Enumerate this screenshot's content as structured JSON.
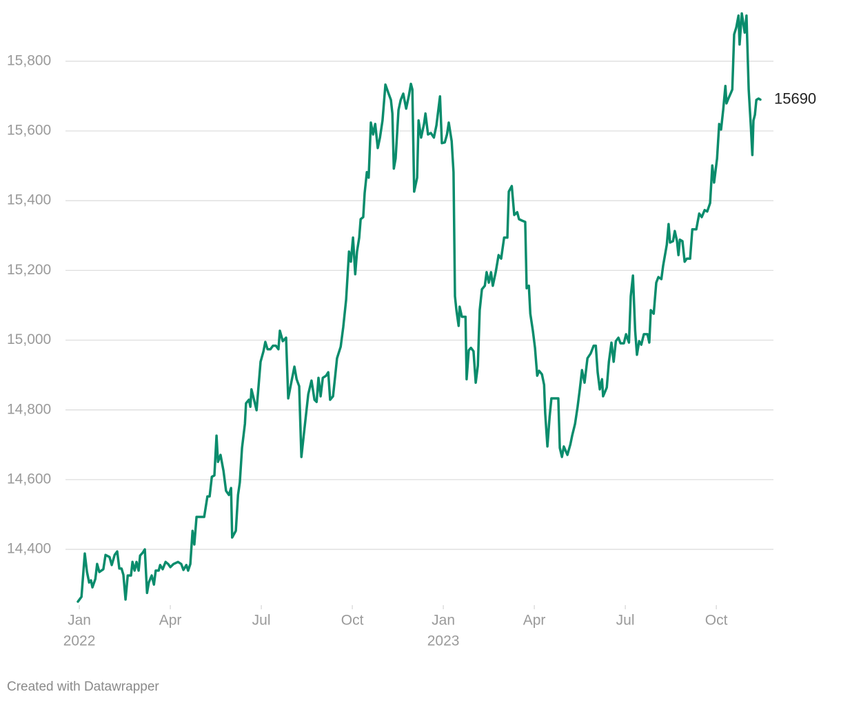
{
  "chart_data": {
    "type": "line",
    "color": "#0a8c6c",
    "grid": true,
    "credit": "Created with Datawrapper",
    "xlim": [
      2021.962,
      2023.907
    ],
    "ylim": [
      14240,
      15940
    ],
    "xticks": [
      {
        "value": 2022,
        "label": "Jan",
        "year": "2022"
      },
      {
        "value": 2022.25,
        "label": "Apr"
      },
      {
        "value": 2022.5,
        "label": "Jul"
      },
      {
        "value": 2022.75,
        "label": "Oct"
      },
      {
        "value": 2023,
        "label": "Jan",
        "year": "2023"
      },
      {
        "value": 2023.25,
        "label": "Apr"
      },
      {
        "value": 2023.5,
        "label": "Jul"
      },
      {
        "value": 2023.75,
        "label": "Oct"
      }
    ],
    "yticks": [
      {
        "value": 14400,
        "label": "14,400"
      },
      {
        "value": 14600,
        "label": "14,600"
      },
      {
        "value": 14800,
        "label": "14,800"
      },
      {
        "value": 15000,
        "label": "15,000"
      },
      {
        "value": 15200,
        "label": "15,200"
      },
      {
        "value": 15400,
        "label": "15,400"
      },
      {
        "value": 15600,
        "label": "15,600"
      },
      {
        "value": 15800,
        "label": "15,800"
      }
    ],
    "x": [
      2021.996,
      2022.006,
      2022.015,
      2022.021,
      2022.027,
      2022.032,
      2022.036,
      2022.044,
      2022.049,
      2022.055,
      2022.066,
      2022.072,
      2022.083,
      2022.089,
      2022.097,
      2022.104,
      2022.11,
      2022.116,
      2022.121,
      2022.127,
      2022.133,
      2022.142,
      2022.146,
      2022.152,
      2022.157,
      2022.163,
      2022.167,
      2022.174,
      2022.18,
      2022.186,
      2022.191,
      2022.199,
      2022.205,
      2022.21,
      2022.218,
      2022.222,
      2022.229,
      2022.237,
      2022.244,
      2022.25,
      2022.259,
      2022.271,
      2022.28,
      2022.286,
      2022.294,
      2022.299,
      2022.305,
      2022.311,
      2022.316,
      2022.322,
      2022.331,
      2022.343,
      2022.352,
      2022.358,
      2022.364,
      2022.371,
      2022.377,
      2022.381,
      2022.388,
      2022.396,
      2022.403,
      2022.411,
      2022.417,
      2022.42,
      2022.43,
      2022.436,
      2022.441,
      2022.447,
      2022.455,
      2022.458,
      2022.466,
      2022.47,
      2022.473,
      2022.479,
      2022.487,
      2022.494,
      2022.498,
      2022.506,
      2022.511,
      2022.517,
      2022.525,
      2022.532,
      2022.54,
      2022.547,
      2022.551,
      2022.559,
      2022.568,
      2022.574,
      2022.583,
      2022.591,
      2022.597,
      2022.604,
      2022.61,
      2022.621,
      2022.629,
      2022.638,
      2022.646,
      2022.652,
      2022.657,
      2022.663,
      2022.669,
      2022.678,
      2022.684,
      2022.689,
      2022.697,
      2022.703,
      2022.708,
      2022.718,
      2022.725,
      2022.733,
      2022.741,
      2022.746,
      2022.752,
      2022.758,
      2022.763,
      2022.769,
      2022.773,
      2022.78,
      2022.784,
      2022.79,
      2022.795,
      2022.801,
      2022.807,
      2022.813,
      2022.82,
      2022.826,
      2022.833,
      2022.841,
      2022.849,
      2022.856,
      2022.86,
      2022.864,
      2022.869,
      2022.877,
      2022.883,
      2022.89,
      2022.898,
      2022.905,
      2022.911,
      2022.915,
      2022.92,
      2022.928,
      2022.932,
      2022.939,
      2022.947,
      2022.951,
      2022.958,
      2022.966,
      2022.974,
      2022.981,
      2022.991,
      2022.996,
      2023.004,
      2023.01,
      2023.015,
      2023.023,
      2023.028,
      2023.032,
      2023.036,
      2023.042,
      2023.045,
      2023.051,
      2023.061,
      2023.064,
      2023.07,
      2023.076,
      2023.083,
      2023.089,
      2023.095,
      2023.1,
      2023.106,
      2023.114,
      2023.119,
      2023.125,
      2023.131,
      2023.136,
      2023.144,
      2023.152,
      2023.159,
      2023.167,
      2023.176,
      2023.18,
      2023.188,
      2023.195,
      2023.203,
      2023.208,
      2023.216,
      2023.225,
      2023.229,
      2023.235,
      2023.239,
      2023.246,
      2023.252,
      2023.258,
      2023.263,
      2023.271,
      2023.277,
      2023.28,
      2023.286,
      2023.292,
      2023.297,
      2023.309,
      2023.316,
      2023.32,
      2023.326,
      2023.331,
      2023.341,
      2023.349,
      2023.354,
      2023.362,
      2023.369,
      2023.375,
      2023.381,
      2023.388,
      2023.396,
      2023.405,
      2023.413,
      2023.419,
      2023.424,
      2023.43,
      2023.436,
      2023.439,
      2023.449,
      2023.455,
      2023.462,
      2023.468,
      2023.474,
      2023.481,
      2023.487,
      2023.496,
      2023.502,
      2023.51,
      2023.515,
      2023.521,
      2023.527,
      2023.532,
      2023.538,
      2023.544,
      2023.551,
      2023.561,
      2023.566,
      2023.57,
      2023.578,
      2023.585,
      2023.591,
      2023.599,
      2023.604,
      2023.614,
      2023.619,
      2023.623,
      2023.631,
      2023.636,
      2023.642,
      2023.646,
      2023.65,
      2023.657,
      2023.663,
      2023.669,
      2023.678,
      2023.684,
      2023.695,
      2023.703,
      2023.71,
      2023.718,
      2023.725,
      2023.733,
      2023.739,
      2023.744,
      2023.752,
      2023.758,
      2023.763,
      2023.769,
      2023.775,
      2023.778,
      2023.784,
      2023.79,
      2023.794,
      2023.799,
      2023.805,
      2023.811,
      2023.814,
      2023.82,
      2023.828,
      2023.833,
      2023.839,
      2023.845,
      2023.849,
      2023.852,
      2023.856,
      2023.86,
      2023.866,
      2023.871
    ],
    "values": [
      14250,
      14264,
      14388,
      14335,
      14305,
      14311,
      14291,
      14315,
      14358,
      14335,
      14343,
      14384,
      14378,
      14355,
      14384,
      14394,
      14345,
      14345,
      14327,
      14256,
      14325,
      14325,
      14364,
      14339,
      14364,
      14339,
      14382,
      14390,
      14400,
      14275,
      14305,
      14325,
      14299,
      14339,
      14339,
      14355,
      14343,
      14364,
      14358,
      14349,
      14358,
      14364,
      14358,
      14341,
      14355,
      14339,
      14358,
      14453,
      14414,
      14493,
      14493,
      14493,
      14552,
      14552,
      14608,
      14612,
      14726,
      14651,
      14671,
      14625,
      14568,
      14556,
      14576,
      14434,
      14453,
      14556,
      14592,
      14691,
      14760,
      14819,
      14829,
      14809,
      14859,
      14833,
      14799,
      14888,
      14938,
      14968,
      14995,
      14974,
      14974,
      14984,
      14984,
      14974,
      15027,
      14997,
      15007,
      14833,
      14882,
      14924,
      14888,
      14868,
      14665,
      14770,
      14845,
      14884,
      14829,
      14823,
      14892,
      14839,
      14892,
      14898,
      14908,
      14829,
      14839,
      14898,
      14948,
      14981,
      15037,
      15116,
      15254,
      15225,
      15294,
      15189,
      15254,
      15294,
      15347,
      15353,
      15422,
      15482,
      15466,
      15624,
      15590,
      15620,
      15551,
      15581,
      15630,
      15733,
      15709,
      15689,
      15650,
      15492,
      15521,
      15660,
      15689,
      15707,
      15664,
      15699,
      15735,
      15719,
      15426,
      15466,
      15630,
      15581,
      15620,
      15650,
      15590,
      15594,
      15581,
      15616,
      15699,
      15565,
      15567,
      15590,
      15624,
      15571,
      15482,
      15126,
      15086,
      15041,
      15096,
      15067,
      15067,
      14888,
      14971,
      14978,
      14968,
      14878,
      14927,
      15086,
      15146,
      15156,
      15195,
      15165,
      15195,
      15156,
      15195,
      15244,
      15234,
      15294,
      15294,
      15426,
      15442,
      15359,
      15367,
      15347,
      15343,
      15339,
      15149,
      15156,
      15076,
      15027,
      14978,
      14898,
      14912,
      14902,
      14872,
      14790,
      14695,
      14780,
      14833,
      14833,
      14833,
      14691,
      14665,
      14695,
      14671,
      14701,
      14726,
      14760,
      14809,
      14859,
      14914,
      14878,
      14948,
      14962,
      14984,
      14984,
      14908,
      14859,
      14888,
      14839,
      14864,
      14938,
      14993,
      14938,
      14997,
      15007,
      14991,
      14991,
      15017,
      14993,
      15126,
      15185,
      15027,
      14958,
      14997,
      14987,
      15017,
      15017,
      14993,
      15086,
      15076,
      15165,
      15181,
      15175,
      15214,
      15274,
      15333,
      15280,
      15284,
      15313,
      15284,
      15244,
      15288,
      15284,
      15225,
      15234,
      15234,
      15318,
      15318,
      15363,
      15353,
      15373,
      15369,
      15393,
      15501,
      15452,
      15521,
      15620,
      15604,
      15660,
      15729,
      15679,
      15695,
      15709,
      15719,
      15877,
      15897,
      15931,
      15848,
      15937,
      15882,
      15931,
      15719,
      15610,
      15531,
      15630,
      15646,
      15689,
      15693,
      15690
    ]
  }
}
